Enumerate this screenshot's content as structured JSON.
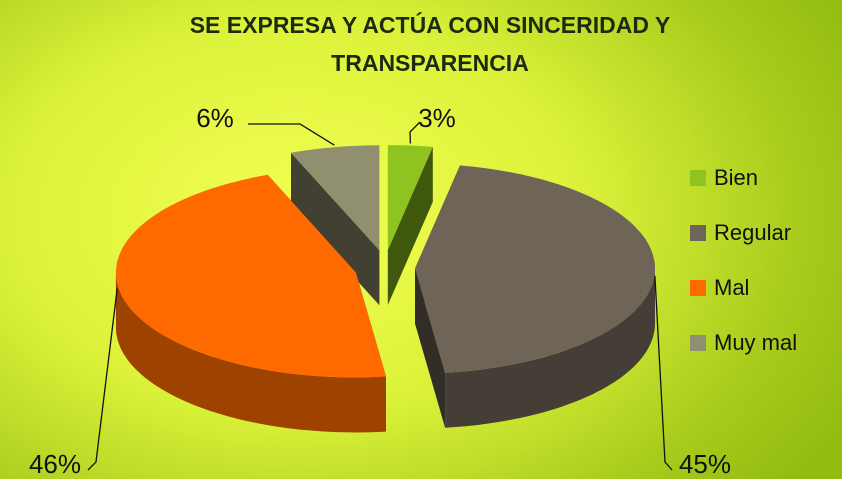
{
  "chart_data": {
    "type": "pie",
    "title": "SE EXPRESA Y ACTÚA CON SINCERIDAD Y TRANSPARENCIA",
    "categories": [
      "Bien",
      "Regular",
      "Mal",
      "Muy mal"
    ],
    "values": [
      3,
      45,
      46,
      6
    ],
    "value_labels": [
      "3%",
      "45%",
      "46%",
      "6%"
    ],
    "colors": [
      "#8fc31f",
      "#6e6457",
      "#ff6a00",
      "#908f70"
    ],
    "legend": "right"
  }
}
